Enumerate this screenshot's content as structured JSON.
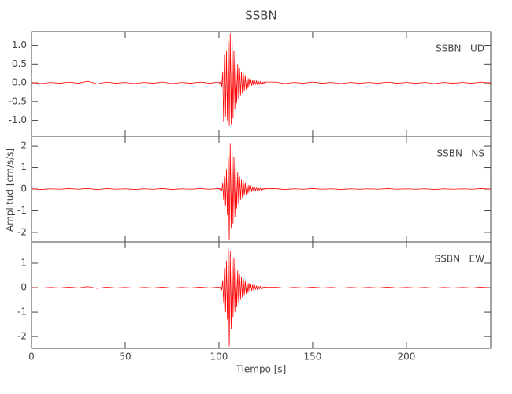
{
  "chart_data": [
    {
      "type": "line",
      "title": "SSBN",
      "x": [
        0,
        5,
        10,
        15,
        20,
        25,
        30,
        35,
        40,
        45,
        50,
        55,
        60,
        65,
        70,
        75,
        80,
        85,
        90,
        95,
        100,
        100.5,
        101,
        101.5,
        102,
        102.5,
        103,
        103.5,
        104,
        104.5,
        105,
        105.5,
        106,
        106.5,
        107,
        107.5,
        108,
        108.5,
        109,
        109.5,
        110,
        110.5,
        111,
        111.5,
        112,
        112.5,
        113,
        113.5,
        114,
        114.5,
        115,
        115.5,
        116,
        116.5,
        117,
        117.5,
        118,
        118.5,
        119,
        119.5,
        120,
        120.5,
        121,
        121.5,
        122,
        122.5,
        123,
        123.5,
        124,
        124.5,
        125,
        130,
        135,
        140,
        145,
        150,
        155,
        160,
        165,
        170,
        175,
        180,
        185,
        190,
        195,
        200,
        205,
        210,
        215,
        220,
        225,
        230,
        235,
        240,
        245
      ],
      "series": [
        {
          "name": "SSBN   UD",
          "color": "#ff0000",
          "values": [
            0.01,
            -0.02,
            0.01,
            -0.01,
            0.02,
            -0.01,
            0.04,
            -0.03,
            0.02,
            -0.01,
            0.01,
            -0.02,
            0.01,
            -0.01,
            0.02,
            -0.02,
            0.01,
            -0.01,
            0.02,
            -0.01,
            0.02,
            -0.03,
            0.05,
            -0.1,
            0.3,
            -1.05,
            0.75,
            -0.9,
            0.85,
            -1.0,
            1.1,
            -1.15,
            1.32,
            -1.1,
            1.2,
            -0.95,
            0.85,
            -0.7,
            0.6,
            -0.55,
            0.5,
            -0.45,
            0.4,
            -0.35,
            0.3,
            -0.28,
            0.25,
            -0.22,
            0.2,
            -0.18,
            0.15,
            -0.14,
            0.12,
            -0.1,
            0.09,
            -0.08,
            0.07,
            -0.06,
            0.06,
            -0.05,
            0.05,
            -0.04,
            0.04,
            -0.04,
            0.03,
            -0.03,
            0.03,
            -0.02,
            0.02,
            -0.02,
            0.02,
            0.02,
            -0.02,
            0.01,
            -0.01,
            0.02,
            -0.01,
            0.01,
            -0.02,
            0.01,
            -0.01,
            0.01,
            -0.01,
            0.02,
            -0.01,
            0.01,
            -0.01,
            0.01,
            -0.02,
            0.01,
            -0.01,
            0.01,
            -0.01,
            0.02,
            -0.01
          ]
        }
      ],
      "xlim": [
        0,
        245
      ],
      "xticks": [
        0,
        50,
        100,
        150,
        200
      ],
      "ylim": [
        -1.43,
        1.37
      ],
      "yticks": [
        {
          "value": -1,
          "label": "-1.0"
        },
        -0.5,
        {
          "value": 0,
          "label": "0.0"
        },
        0.5,
        {
          "value": 1,
          "label": "1.0"
        }
      ]
    },
    {
      "type": "line",
      "ylabel": "Amplitud [cm/s/s]",
      "x": [
        0,
        5,
        10,
        15,
        20,
        25,
        30,
        35,
        40,
        45,
        50,
        55,
        60,
        65,
        70,
        75,
        80,
        85,
        90,
        95,
        100,
        100.5,
        101,
        101.5,
        102,
        102.5,
        103,
        103.5,
        104,
        104.5,
        105,
        105.5,
        106,
        106.5,
        107,
        107.5,
        108,
        108.5,
        109,
        109.5,
        110,
        110.5,
        111,
        111.5,
        112,
        112.5,
        113,
        113.5,
        114,
        114.5,
        115,
        115.5,
        116,
        116.5,
        117,
        117.5,
        118,
        118.5,
        119,
        119.5,
        120,
        120.5,
        121,
        121.5,
        122,
        122.5,
        123,
        123.5,
        124,
        124.5,
        125,
        130,
        135,
        140,
        145,
        150,
        155,
        160,
        165,
        170,
        175,
        180,
        185,
        190,
        195,
        200,
        205,
        210,
        215,
        220,
        225,
        230,
        235,
        240,
        245
      ],
      "series": [
        {
          "name": "SSBN   NS",
          "color": "#ff0000",
          "values": [
            0.01,
            -0.02,
            0.01,
            -0.01,
            0.02,
            -0.01,
            0.03,
            -0.03,
            0.02,
            -0.01,
            0.01,
            -0.02,
            0.01,
            -0.01,
            0.02,
            -0.02,
            0.01,
            -0.01,
            0.02,
            -0.01,
            0.02,
            -0.03,
            0.05,
            -0.1,
            0.3,
            -0.5,
            0.6,
            -0.8,
            0.9,
            -1.2,
            1.5,
            -2.35,
            2.1,
            -1.8,
            1.9,
            -1.6,
            1.5,
            -1.3,
            1.1,
            -0.9,
            0.8,
            -0.7,
            0.6,
            -0.5,
            0.45,
            -0.4,
            0.35,
            -0.3,
            0.3,
            -0.25,
            0.22,
            -0.2,
            0.18,
            -0.16,
            0.15,
            -0.13,
            0.12,
            -0.1,
            0.1,
            -0.08,
            0.08,
            -0.07,
            0.06,
            -0.05,
            0.05,
            -0.04,
            0.04,
            -0.03,
            0.03,
            -0.03,
            0.02,
            0.02,
            -0.02,
            0.01,
            -0.01,
            0.02,
            -0.01,
            0.01,
            -0.02,
            0.01,
            -0.01,
            0.01,
            -0.01,
            0.02,
            -0.01,
            0.01,
            -0.01,
            0.01,
            -0.02,
            0.01,
            -0.01,
            0.01,
            -0.01,
            0.02,
            -0.01
          ]
        }
      ],
      "xlim": [
        0,
        245
      ],
      "xticks": [
        0,
        50,
        100,
        150,
        200
      ],
      "ylim": [
        -2.44,
        2.44
      ],
      "yticks": [
        -2,
        -1,
        0,
        1,
        2
      ]
    },
    {
      "type": "line",
      "xlabel": "Tiempo [s]",
      "x": [
        0,
        5,
        10,
        15,
        20,
        25,
        30,
        35,
        40,
        45,
        50,
        55,
        60,
        65,
        70,
        75,
        80,
        85,
        90,
        95,
        100,
        100.5,
        101,
        101.5,
        102,
        102.5,
        103,
        103.5,
        104,
        104.5,
        105,
        105.5,
        106,
        106.5,
        107,
        107.5,
        108,
        108.5,
        109,
        109.5,
        110,
        110.5,
        111,
        111.5,
        112,
        112.5,
        113,
        113.5,
        114,
        114.5,
        115,
        115.5,
        116,
        116.5,
        117,
        117.5,
        118,
        118.5,
        119,
        119.5,
        120,
        120.5,
        121,
        121.5,
        122,
        122.5,
        123,
        123.5,
        124,
        124.5,
        125,
        130,
        135,
        140,
        145,
        150,
        155,
        160,
        165,
        170,
        175,
        180,
        185,
        190,
        195,
        200,
        205,
        210,
        215,
        220,
        225,
        230,
        235,
        240,
        245
      ],
      "series": [
        {
          "name": "SSBN   EW",
          "color": "#ff0000",
          "values": [
            0.01,
            -0.02,
            0.01,
            -0.01,
            0.02,
            -0.01,
            0.04,
            -0.03,
            0.02,
            -0.01,
            0.01,
            -0.02,
            0.01,
            -0.01,
            0.02,
            -0.02,
            0.01,
            -0.01,
            0.02,
            -0.01,
            0.02,
            -0.03,
            0.05,
            -0.1,
            0.3,
            -0.6,
            0.8,
            -1.0,
            1.1,
            -1.3,
            1.6,
            -2.4,
            1.5,
            -1.7,
            1.4,
            -1.2,
            1.2,
            -1.0,
            0.9,
            -0.8,
            0.7,
            -0.6,
            0.55,
            -0.5,
            0.45,
            -0.4,
            0.35,
            -0.3,
            0.3,
            -0.25,
            0.22,
            -0.2,
            0.18,
            -0.16,
            0.15,
            -0.13,
            0.12,
            -0.1,
            0.1,
            -0.08,
            0.08,
            -0.07,
            0.06,
            -0.05,
            0.05,
            -0.04,
            0.04,
            -0.03,
            0.03,
            -0.03,
            0.02,
            0.02,
            -0.02,
            0.01,
            -0.01,
            0.02,
            -0.01,
            0.01,
            -0.02,
            0.01,
            -0.01,
            0.01,
            -0.01,
            0.02,
            -0.01,
            0.01,
            -0.01,
            0.01,
            -0.02,
            0.01,
            -0.01,
            0.01,
            -0.01,
            0.02,
            -0.01
          ]
        }
      ],
      "xlim": [
        0,
        245
      ],
      "xticks": [
        0,
        50,
        100,
        150,
        200
      ],
      "ylim": [
        -2.48,
        1.87
      ],
      "yticks": [
        -2,
        -1,
        0,
        1
      ]
    }
  ]
}
